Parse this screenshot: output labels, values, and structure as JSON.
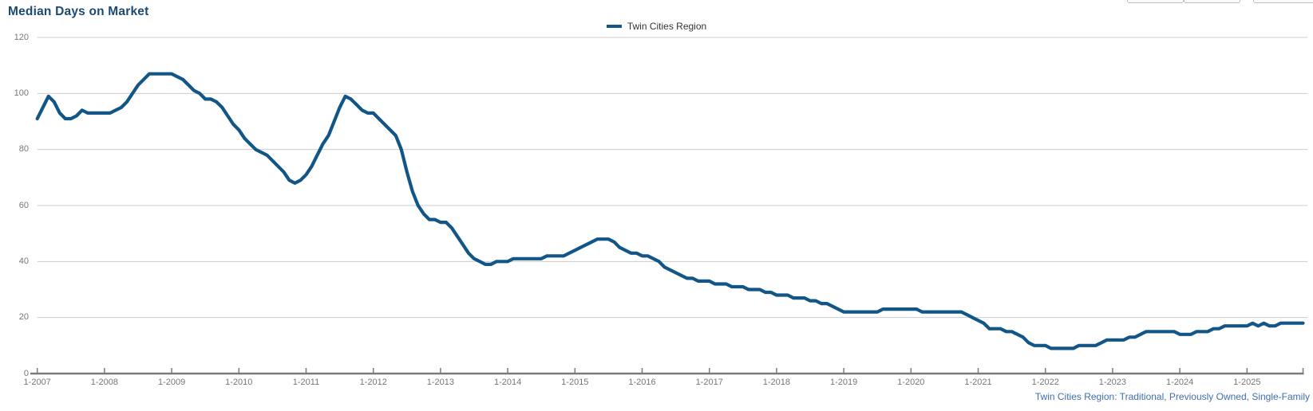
{
  "header": {
    "title": "Median Days on Market"
  },
  "legend": {
    "label": "Twin Cities Region"
  },
  "footnote": {
    "text": "Twin Cities Region: Traditional, Previously Owned, Single-Family"
  },
  "colors": {
    "series": "#125687",
    "title": "#1b4971",
    "footnote": "#3f6fae",
    "gridline": "#cccccc",
    "axis": "#7a7a7a",
    "tick_label": "#767676"
  },
  "chart_data": {
    "type": "line",
    "title": "Median Days on Market",
    "ylabel": "",
    "xlabel": "",
    "ylim": [
      0,
      120
    ],
    "y_ticks": [
      0,
      20,
      40,
      60,
      80,
      100,
      120
    ],
    "grid": "horizontal",
    "legend_position": "top-center",
    "x_tick_labels": [
      "1-2007",
      "1-2008",
      "1-2009",
      "1-2010",
      "1-2011",
      "1-2012",
      "1-2013",
      "1-2014",
      "1-2015",
      "1-2016",
      "1-2017",
      "1-2018",
      "1-2019",
      "1-2020",
      "1-2021",
      "1-2022",
      "1-2023",
      "1-2024",
      "1-2025"
    ],
    "x_start": "2007-01",
    "x_end": "2025-11",
    "frequency": "monthly",
    "series": [
      {
        "name": "Twin Cities Region",
        "color": "#125687",
        "values": [
          91,
          95,
          99,
          97,
          93,
          91,
          91,
          92,
          94,
          93,
          93,
          93,
          93,
          93,
          94,
          95,
          97,
          100,
          103,
          105,
          107,
          107,
          107,
          107,
          107,
          106,
          105,
          103,
          101,
          100,
          98,
          98,
          97,
          95,
          92,
          89,
          87,
          84,
          82,
          80,
          79,
          78,
          76,
          74,
          72,
          69,
          68,
          69,
          71,
          74,
          78,
          82,
          85,
          90,
          95,
          99,
          98,
          96,
          94,
          93,
          93,
          91,
          89,
          87,
          85,
          80,
          72,
          65,
          60,
          57,
          55,
          55,
          54,
          54,
          52,
          49,
          46,
          43,
          41,
          40,
          39,
          39,
          40,
          40,
          40,
          41,
          41,
          41,
          41,
          41,
          41,
          42,
          42,
          42,
          42,
          43,
          44,
          45,
          46,
          47,
          48,
          48,
          48,
          47,
          45,
          44,
          43,
          43,
          42,
          42,
          41,
          40,
          38,
          37,
          36,
          35,
          34,
          34,
          33,
          33,
          33,
          32,
          32,
          32,
          31,
          31,
          31,
          30,
          30,
          30,
          29,
          29,
          28,
          28,
          28,
          27,
          27,
          27,
          26,
          26,
          25,
          25,
          24,
          23,
          22,
          22,
          22,
          22,
          22,
          22,
          22,
          23,
          23,
          23,
          23,
          23,
          23,
          23,
          22,
          22,
          22,
          22,
          22,
          22,
          22,
          22,
          21,
          20,
          19,
          18,
          16,
          16,
          16,
          15,
          15,
          14,
          13,
          11,
          10,
          10,
          10,
          9,
          9,
          9,
          9,
          9,
          10,
          10,
          10,
          10,
          11,
          12,
          12,
          12,
          12,
          13,
          13,
          14,
          15,
          15,
          15,
          15,
          15,
          15,
          14,
          14,
          14,
          15,
          15,
          15,
          16,
          16,
          17,
          17,
          17,
          17,
          17,
          18,
          17,
          18,
          17,
          17,
          18,
          18,
          18,
          18,
          18
        ]
      }
    ]
  }
}
